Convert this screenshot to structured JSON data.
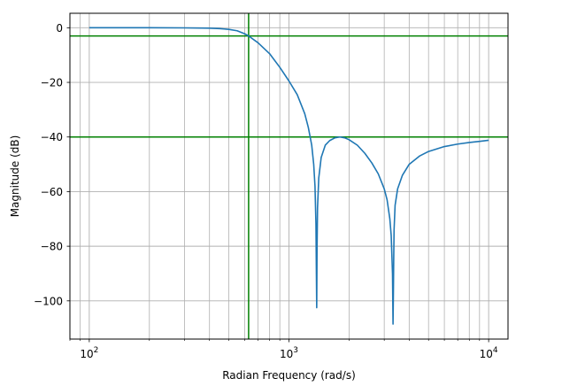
{
  "chart_data": {
    "type": "line",
    "title": "",
    "xlabel": "Radian Frequency (rad/s)",
    "ylabel": "Magnitude (dB)",
    "xscale": "log",
    "xlim": [
      80,
      12500
    ],
    "ylim": [
      -114,
      5.3
    ],
    "grid": true,
    "grid_minor": true,
    "x_ticks": [
      {
        "value": 100,
        "base": "10",
        "exp": "2"
      },
      {
        "value": 1000,
        "base": "10",
        "exp": "3"
      },
      {
        "value": 10000,
        "base": "10",
        "exp": "4"
      }
    ],
    "y_ticks": [
      {
        "value": 0,
        "label": "0"
      },
      {
        "value": -20,
        "label": "−20"
      },
      {
        "value": -40,
        "label": "−40"
      },
      {
        "value": -60,
        "label": "−60"
      },
      {
        "value": -80,
        "label": "−80"
      },
      {
        "value": -100,
        "label": "−100"
      }
    ],
    "series": [
      {
        "color": "#1f77b4",
        "x": [
          100,
          200,
          300,
          400,
          450,
          500,
          550,
          600,
          628,
          700,
          800,
          900,
          1000,
          1100,
          1200,
          1250,
          1300,
          1330,
          1350,
          1365,
          1372,
          1377,
          1382,
          1390,
          1410,
          1450,
          1520,
          1600,
          1700,
          1800,
          1900,
          2000,
          2200,
          2400,
          2600,
          2800,
          3000,
          3100,
          3200,
          3250,
          3300,
          3320,
          3335,
          3345,
          3360,
          3400,
          3500,
          3700,
          4000,
          4500,
          5000,
          6000,
          7000,
          8000,
          9000,
          10000
        ],
        "y": [
          0,
          0,
          -0.05,
          -0.15,
          -0.3,
          -0.6,
          -1.1,
          -2.2,
          -3.0,
          -5.5,
          -9.5,
          -14.5,
          -19.5,
          -24.5,
          -31.5,
          -36.5,
          -43,
          -50,
          -58,
          -72,
          -90,
          -102.5,
          -82,
          -66,
          -55,
          -47.5,
          -43,
          -41.3,
          -40.3,
          -40,
          -40.3,
          -41,
          -43,
          -46,
          -49.5,
          -53.5,
          -59,
          -63,
          -70,
          -76,
          -90,
          -108.5,
          -96,
          -86,
          -74,
          -65,
          -59,
          -54,
          -50,
          -47,
          -45.3,
          -43.5,
          -42.6,
          -42,
          -41.6,
          -41.2
        ]
      }
    ],
    "reference_lines": [
      {
        "orientation": "horizontal",
        "value": -3,
        "color": "#008000"
      },
      {
        "orientation": "horizontal",
        "value": -40,
        "color": "#008000"
      },
      {
        "orientation": "vertical",
        "value": 628,
        "color": "#008000"
      }
    ]
  }
}
